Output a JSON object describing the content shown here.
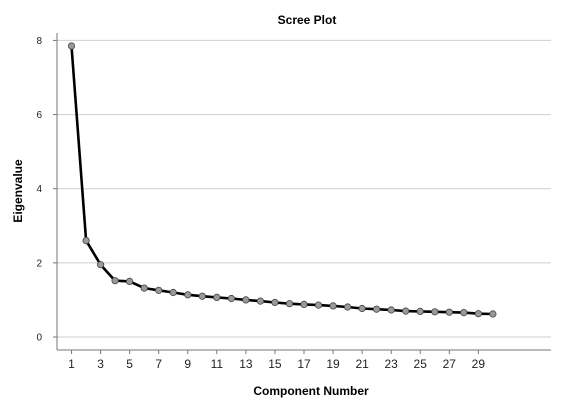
{
  "chart_data": {
    "type": "line",
    "title": "Scree Plot",
    "xlabel": "Component Number",
    "ylabel": "Eigenvalue",
    "x": [
      1,
      2,
      3,
      4,
      5,
      6,
      7,
      8,
      9,
      10,
      11,
      12,
      13,
      14,
      15,
      16,
      17,
      18,
      19,
      20,
      21,
      22,
      23,
      24,
      25,
      26,
      27,
      28,
      29,
      30
    ],
    "values": [
      7.85,
      2.6,
      1.95,
      1.52,
      1.5,
      1.32,
      1.26,
      1.2,
      1.14,
      1.1,
      1.07,
      1.04,
      1.0,
      0.97,
      0.93,
      0.9,
      0.88,
      0.86,
      0.84,
      0.81,
      0.77,
      0.75,
      0.73,
      0.7,
      0.69,
      0.68,
      0.67,
      0.66,
      0.63,
      0.62
    ],
    "x_tick_labels": [
      "1",
      "3",
      "5",
      "7",
      "9",
      "11",
      "13",
      "15",
      "17",
      "19",
      "21",
      "23",
      "25",
      "27",
      "29"
    ],
    "y_ticks": [
      0,
      2,
      4,
      6,
      8
    ],
    "ylim": [
      -0.35,
      8.2
    ],
    "xlim": [
      0,
      34
    ],
    "grid": true,
    "line_color": "#000000",
    "marker_color": "#9a9a9a"
  }
}
